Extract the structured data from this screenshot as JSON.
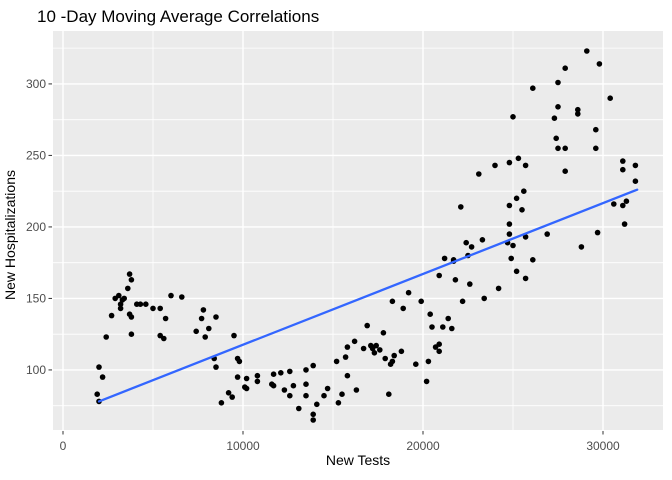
{
  "chart_data": {
    "type": "scatter",
    "title": "10 -Day Moving Average Correlations",
    "xlabel": "New Tests",
    "ylabel": "New Hospitalizations",
    "xlim": [
      -556,
      33333
    ],
    "ylim": [
      58,
      337
    ],
    "x_ticks": {
      "values": [
        0,
        10000,
        20000,
        30000
      ],
      "labels": [
        "0",
        "10000",
        "20000",
        "30000"
      ]
    },
    "y_ticks": {
      "values": [
        100,
        150,
        200,
        250,
        300
      ],
      "labels": [
        "100",
        "150",
        "200",
        "250",
        "300"
      ]
    },
    "x_minor_ticks": [
      5000,
      15000,
      25000
    ],
    "y_minor_ticks": [
      75,
      125,
      175,
      225,
      275,
      325
    ],
    "grid": true,
    "legend_position": "none",
    "colors": {
      "panel_background": "#EBEBEB",
      "grid": "#FFFFFF",
      "point": "#000000",
      "trend": "#3366FF",
      "tick_mark": "#333333",
      "tick_label": "#4D4D4D",
      "title_text": "#000000"
    },
    "trend_line": {
      "x1": 2000,
      "y1": 78,
      "x2": 31900,
      "y2": 226
    },
    "points": [
      [
        1900,
        83
      ],
      [
        2000,
        78
      ],
      [
        2000,
        102
      ],
      [
        2200,
        95
      ],
      [
        2400,
        123
      ],
      [
        2700,
        138
      ],
      [
        2900,
        150
      ],
      [
        3100,
        152
      ],
      [
        3200,
        143
      ],
      [
        3200,
        146
      ],
      [
        3300,
        149
      ],
      [
        3400,
        150
      ],
      [
        3600,
        157
      ],
      [
        3700,
        139
      ],
      [
        3700,
        167
      ],
      [
        3800,
        125
      ],
      [
        3800,
        137
      ],
      [
        3800,
        163
      ],
      [
        4100,
        146
      ],
      [
        4300,
        146
      ],
      [
        4600,
        146
      ],
      [
        5000,
        143
      ],
      [
        5400,
        124
      ],
      [
        5400,
        143
      ],
      [
        5600,
        122
      ],
      [
        5700,
        136
      ],
      [
        6000,
        152
      ],
      [
        6600,
        151
      ],
      [
        7400,
        127
      ],
      [
        7700,
        136
      ],
      [
        7800,
        142
      ],
      [
        7900,
        123
      ],
      [
        8100,
        129
      ],
      [
        8400,
        108
      ],
      [
        8500,
        102
      ],
      [
        8500,
        137
      ],
      [
        8800,
        77
      ],
      [
        9200,
        84
      ],
      [
        9400,
        81
      ],
      [
        9500,
        124
      ],
      [
        9700,
        95
      ],
      [
        9700,
        108
      ],
      [
        9800,
        106
      ],
      [
        10100,
        88
      ],
      [
        10200,
        87
      ],
      [
        10200,
        94
      ],
      [
        10800,
        92
      ],
      [
        10800,
        96
      ],
      [
        11600,
        90
      ],
      [
        11700,
        89
      ],
      [
        11700,
        97
      ],
      [
        12100,
        98
      ],
      [
        12300,
        86
      ],
      [
        12600,
        82
      ],
      [
        12600,
        99
      ],
      [
        12800,
        89
      ],
      [
        13100,
        73
      ],
      [
        13500,
        82
      ],
      [
        13500,
        90
      ],
      [
        13500,
        100
      ],
      [
        13900,
        65
      ],
      [
        13900,
        69
      ],
      [
        13900,
        103
      ],
      [
        14100,
        76
      ],
      [
        14500,
        82
      ],
      [
        14700,
        87
      ],
      [
        15200,
        106
      ],
      [
        15300,
        77
      ],
      [
        15500,
        83
      ],
      [
        15700,
        109
      ],
      [
        15800,
        96
      ],
      [
        15800,
        116
      ],
      [
        16200,
        120
      ],
      [
        16300,
        86
      ],
      [
        16700,
        115
      ],
      [
        16900,
        131
      ],
      [
        17100,
        117
      ],
      [
        17200,
        115
      ],
      [
        17300,
        112
      ],
      [
        17400,
        117
      ],
      [
        17600,
        114
      ],
      [
        17800,
        126
      ],
      [
        17900,
        108
      ],
      [
        18100,
        83
      ],
      [
        18200,
        104
      ],
      [
        18300,
        106
      ],
      [
        18300,
        148
      ],
      [
        18400,
        110
      ],
      [
        18800,
        113
      ],
      [
        18900,
        143
      ],
      [
        19200,
        154
      ],
      [
        19600,
        104
      ],
      [
        19900,
        148
      ],
      [
        20200,
        92
      ],
      [
        20300,
        106
      ],
      [
        20400,
        139
      ],
      [
        20500,
        130
      ],
      [
        20700,
        116
      ],
      [
        20900,
        113
      ],
      [
        20900,
        118
      ],
      [
        20900,
        166
      ],
      [
        21100,
        130
      ],
      [
        21200,
        178
      ],
      [
        21400,
        136
      ],
      [
        21600,
        129
      ],
      [
        21700,
        176
      ],
      [
        21700,
        177
      ],
      [
        21800,
        163
      ],
      [
        22100,
        214
      ],
      [
        22200,
        148
      ],
      [
        22400,
        189
      ],
      [
        22500,
        180
      ],
      [
        22600,
        160
      ],
      [
        22700,
        186
      ],
      [
        23100,
        237
      ],
      [
        23300,
        191
      ],
      [
        23400,
        150
      ],
      [
        24000,
        243
      ],
      [
        24200,
        157
      ],
      [
        24700,
        189
      ],
      [
        24800,
        195
      ],
      [
        24800,
        202
      ],
      [
        24800,
        215
      ],
      [
        24800,
        245
      ],
      [
        24900,
        178
      ],
      [
        25000,
        187
      ],
      [
        25000,
        277
      ],
      [
        25200,
        169
      ],
      [
        25200,
        220
      ],
      [
        25300,
        248
      ],
      [
        25500,
        212
      ],
      [
        25600,
        225
      ],
      [
        25700,
        164
      ],
      [
        25700,
        193
      ],
      [
        25700,
        243
      ],
      [
        26100,
        177
      ],
      [
        26100,
        297
      ],
      [
        26900,
        195
      ],
      [
        27300,
        276
      ],
      [
        27400,
        262
      ],
      [
        27500,
        255
      ],
      [
        27500,
        284
      ],
      [
        27500,
        301
      ],
      [
        27900,
        239
      ],
      [
        27900,
        255
      ],
      [
        27900,
        311
      ],
      [
        28600,
        279
      ],
      [
        28600,
        282
      ],
      [
        28800,
        186
      ],
      [
        29100,
        323
      ],
      [
        29600,
        255
      ],
      [
        29600,
        268
      ],
      [
        29700,
        196
      ],
      [
        29800,
        314
      ],
      [
        30400,
        290
      ],
      [
        30600,
        216
      ],
      [
        31100,
        215
      ],
      [
        31100,
        240
      ],
      [
        31100,
        246
      ],
      [
        31200,
        202
      ],
      [
        31300,
        218
      ],
      [
        31800,
        232
      ],
      [
        31800,
        243
      ]
    ]
  }
}
